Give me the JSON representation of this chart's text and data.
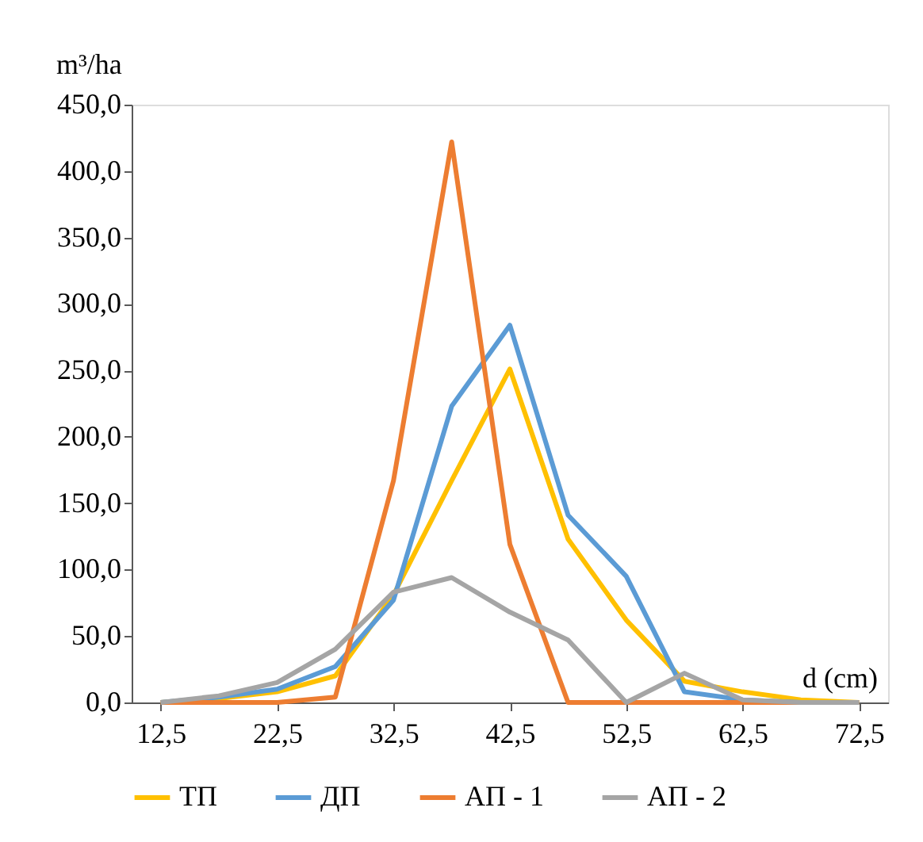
{
  "chart_data": {
    "type": "line",
    "ylabel": "m³/ha",
    "xlabel": "d (cm)",
    "categories": [
      "12,5",
      null,
      "22,5",
      null,
      "32,5",
      null,
      "42,5",
      null,
      "52,5",
      null,
      "62,5",
      null,
      "72,5"
    ],
    "ylim": [
      0,
      450
    ],
    "yticks": [
      {
        "value": 0,
        "label": "0,0"
      },
      {
        "value": 50,
        "label": "50,0"
      },
      {
        "value": 100,
        "label": "100,0"
      },
      {
        "value": 150,
        "label": "150,0"
      },
      {
        "value": 200,
        "label": "200,0"
      },
      {
        "value": 250,
        "label": "250,0"
      },
      {
        "value": 300,
        "label": "300,0"
      },
      {
        "value": 350,
        "label": "350,0"
      },
      {
        "value": 400,
        "label": "400,0"
      },
      {
        "value": 450,
        "label": "450,0"
      }
    ],
    "series": [
      {
        "name": "ТП",
        "color": "#ffc000",
        "values": [
          0,
          3,
          8,
          20,
          81,
          167,
          251,
          123,
          62,
          16,
          8,
          2,
          0
        ]
      },
      {
        "name": "ДП",
        "color": "#5b9bd5",
        "values": [
          0,
          4,
          10,
          27,
          77,
          223,
          284,
          141,
          95,
          8,
          2,
          0,
          0
        ]
      },
      {
        "name": "АП - 1",
        "color": "#ed7d31",
        "values": [
          0,
          0,
          0,
          4,
          167,
          422,
          119,
          0,
          0,
          0,
          0,
          0,
          0
        ]
      },
      {
        "name": "АП - 2",
        "color": "#a5a5a5",
        "values": [
          0,
          5,
          15,
          40,
          83,
          94,
          68,
          47,
          0,
          22,
          2,
          0,
          0
        ]
      }
    ],
    "legend": "bottom",
    "grid": false,
    "marker": "none",
    "line_style": "solid"
  }
}
